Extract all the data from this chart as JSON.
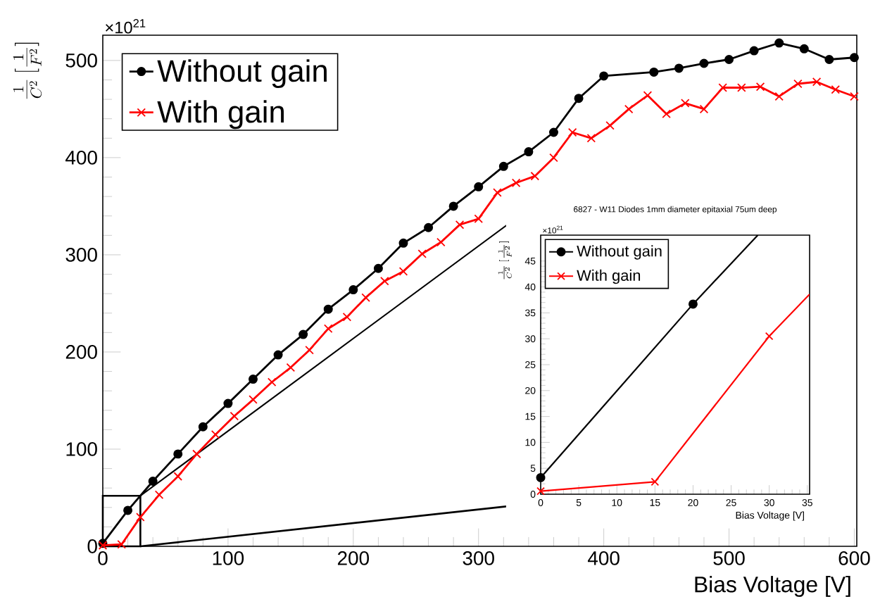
{
  "chart_data": [
    {
      "type": "line",
      "xlabel": "Bias Voltage [V]",
      "ylabel": "\\frac{1}{C^{2}}\\,[\\frac{1}{F^{2}}]",
      "annotations": [
        "×10$^{21}$"
      ],
      "xlim": [
        0,
        602
      ],
      "ylim": [
        0,
        526
      ],
      "xticks": [
        0,
        100,
        200,
        300,
        400,
        500,
        600
      ],
      "yticks": [
        0,
        100,
        200,
        300,
        400,
        500
      ],
      "legend": "top left",
      "series": [
        {
          "name": "Without gain",
          "color": "#000000",
          "marker": "circle",
          "line_style": "solid",
          "x": [
            0,
            20,
            40,
            60,
            80,
            100,
            120,
            140,
            160,
            180,
            200,
            220,
            240,
            260,
            280,
            300,
            320,
            340,
            360,
            380,
            400,
            440,
            460,
            480,
            500,
            520,
            540,
            560,
            580,
            600
          ],
          "values": [
            3,
            37,
            67,
            95,
            123,
            147,
            172,
            197,
            218,
            244,
            264,
            286,
            312,
            328,
            350,
            370,
            391,
            406,
            426,
            461,
            484,
            488,
            492,
            497,
            501,
            510,
            518,
            512,
            501,
            503
          ]
        },
        {
          "name": "With gain",
          "color": "#ff0000",
          "marker": "cross",
          "line_style": "solid",
          "x": [
            0,
            15,
            30,
            45,
            60,
            75,
            90,
            105,
            120,
            135,
            150,
            165,
            180,
            195,
            210,
            225,
            240,
            255,
            270,
            285,
            300,
            315,
            330,
            345,
            360,
            375,
            390,
            405,
            420,
            435,
            450,
            465,
            480,
            495,
            510,
            525,
            540,
            555,
            570,
            585,
            600
          ],
          "values": [
            1,
            2,
            30,
            53,
            72,
            95,
            115,
            134,
            151,
            169,
            184,
            202,
            224,
            236,
            256,
            273,
            283,
            301,
            313,
            331,
            337,
            364,
            374,
            381,
            400,
            426,
            420,
            433,
            450,
            464,
            445,
            456,
            450,
            472,
            472,
            473,
            463,
            476,
            478,
            470,
            463
          ]
        }
      ]
    },
    {
      "type": "line",
      "title": "6827 - W11 Diodes 1mm diameter epitaxial 75um deep",
      "xlabel": "Bias Voltage [V]",
      "ylabel": "\\frac{1}{C^{2}}\\,[\\frac{1}{F^{2}}]",
      "annotations": [
        "×10$^{21}$"
      ],
      "xlim": [
        0,
        35.3
      ],
      "ylim": [
        0,
        50
      ],
      "xticks": [
        0,
        5,
        10,
        15,
        20,
        25,
        30,
        35
      ],
      "yticks": [
        0,
        5,
        10,
        15,
        20,
        25,
        30,
        35,
        40,
        45
      ],
      "legend": "top left",
      "series": [
        {
          "name": "Without gain",
          "color": "#000000",
          "marker": "circle",
          "line_style": "solid",
          "x": [
            0,
            20,
            28.5
          ],
          "values": [
            3.2,
            36.7,
            50
          ]
        },
        {
          "name": "With gain",
          "color": "#ff0000",
          "marker": "cross",
          "line_style": "solid",
          "x": [
            0,
            15,
            30,
            35.3
          ],
          "values": [
            0.6,
            2.4,
            30.5,
            38.6
          ]
        }
      ]
    }
  ]
}
